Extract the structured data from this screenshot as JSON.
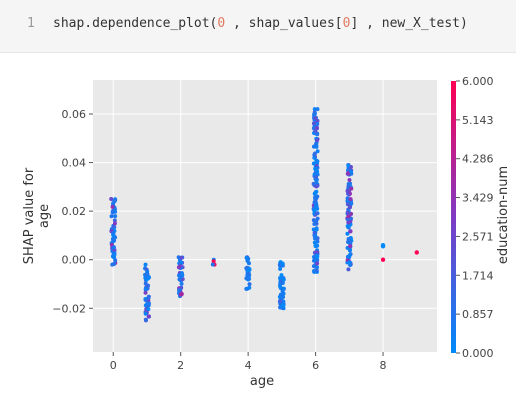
{
  "code_cell": {
    "line_number": "1",
    "tokens": [
      {
        "text": "shap.dependence_plot(",
        "type": "plain"
      },
      {
        "text": "0",
        "type": "num"
      },
      {
        "text": " , shap_values[",
        "type": "plain"
      },
      {
        "text": "0",
        "type": "num"
      },
      {
        "text": "] , new_X_test)",
        "type": "plain"
      }
    ]
  },
  "chart_data": {
    "type": "scatter",
    "xlabel": "age",
    "ylabel_lines": [
      "SHAP value for",
      "age"
    ],
    "xlim": [
      -0.6,
      9.6
    ],
    "ylim": [
      -0.038,
      0.074
    ],
    "x_ticks": [
      "0",
      "2",
      "4",
      "6",
      "8"
    ],
    "y_ticks": [
      "−0.02",
      "0.00",
      "0.02",
      "0.04",
      "0.06"
    ],
    "x_tick_values": [
      0,
      2,
      4,
      6,
      8
    ],
    "y_tick_values": [
      -0.02,
      0,
      0.02,
      0.04,
      0.06
    ],
    "grid": true,
    "colorbar": {
      "label": "education-num",
      "min": 0,
      "max": 6,
      "ticks": [
        "0.000",
        "0.857",
        "1.714",
        "2.571",
        "3.429",
        "4.286",
        "5.143",
        "6.000"
      ],
      "colors": [
        "#008afb",
        "#7f3bc4",
        "#ff0052"
      ]
    },
    "groups": [
      {
        "x": 0,
        "y_min": -0.002,
        "y_max": 0.025,
        "color": 0.4
      },
      {
        "x": 1,
        "y_min": -0.025,
        "y_max": -0.002,
        "color": 0.3
      },
      {
        "x": 2,
        "y_min": -0.015,
        "y_max": 0.001,
        "color": 0.45
      },
      {
        "x": 3,
        "y_min": -0.002,
        "y_max": 0.0,
        "color": 0.8
      },
      {
        "x": 4,
        "y_min": -0.012,
        "y_max": 0.001,
        "color": 0.2
      },
      {
        "x": 5,
        "y_min": -0.02,
        "y_max": -0.001,
        "color": 0.15
      },
      {
        "x": 6,
        "y_min": -0.005,
        "y_max": 0.062,
        "color": 0.25
      },
      {
        "x": 7,
        "y_min": -0.004,
        "y_max": 0.039,
        "color": 0.4
      }
    ],
    "points": [
      {
        "x": 8,
        "y": 0.0055,
        "color": 0.0
      },
      {
        "x": 8,
        "y": 0.006,
        "color": 0.0
      },
      {
        "x": 8,
        "y": 0.0,
        "color": 1.0
      },
      {
        "x": 9,
        "y": 0.003,
        "color": 1.0
      }
    ]
  }
}
